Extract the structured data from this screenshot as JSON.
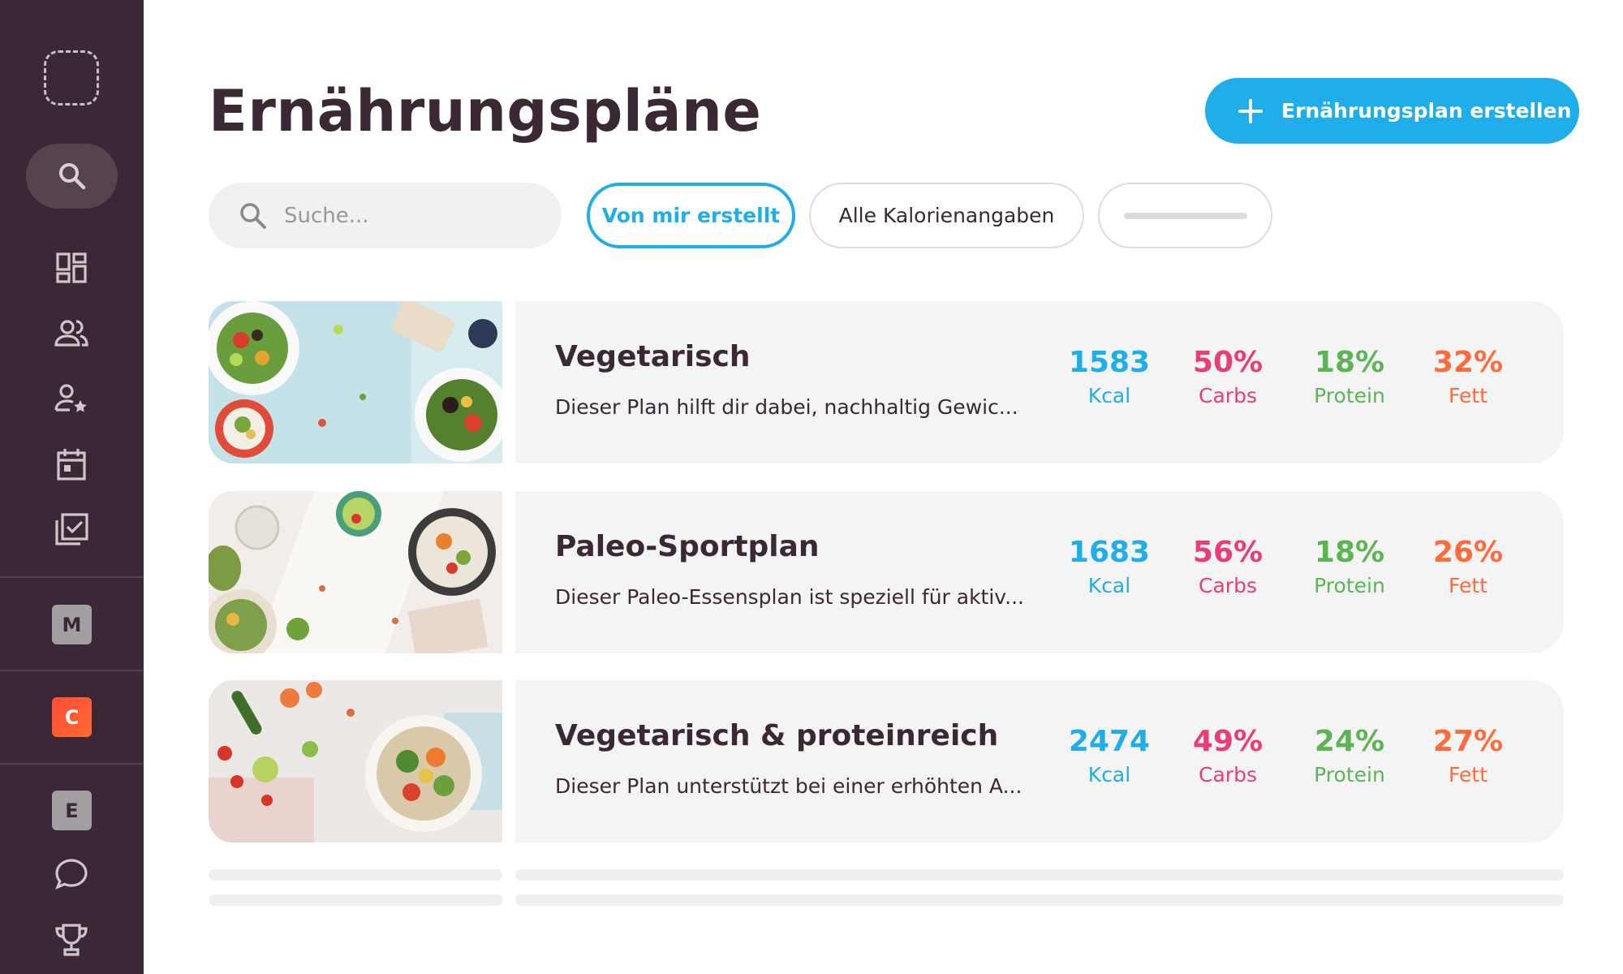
{
  "sidebar": {
    "letters": [
      "M",
      "C",
      "E"
    ],
    "icons": [
      "logo-placeholder-icon",
      "search-icon",
      "dashboard-icon",
      "users-icon",
      "user-star-icon",
      "calendar-icon",
      "checklist-icon",
      "chat-icon",
      "trophy-icon"
    ]
  },
  "header": {
    "title": "Ernährungspläne",
    "create_label": "Ernährungsplan erstellen"
  },
  "filters": {
    "search_placeholder": "Suche...",
    "chip_active": "Von mir erstellt",
    "chip_calories": "Alle Kalorienangaben"
  },
  "plans": [
    {
      "title": "Vegetarisch",
      "description": "Dieser Plan hilft dir dabei, nachhaltig Gewic...",
      "kcal": "1583",
      "kcal_label": "Kcal",
      "carbs": "50%",
      "carbs_label": "Carbs",
      "protein": "18%",
      "protein_label": "Protein",
      "fett": "32%",
      "fett_label": "Fett"
    },
    {
      "title": "Paleo-Sportplan",
      "description": "Dieser Paleo-Essensplan ist speziell für aktiv...",
      "kcal": "1683",
      "kcal_label": "Kcal",
      "carbs": "56%",
      "carbs_label": "Carbs",
      "protein": "18%",
      "protein_label": "Protein",
      "fett": "26%",
      "fett_label": "Fett"
    },
    {
      "title": "Vegetarisch & proteinreich",
      "description": "Dieser Plan unterstützt bei einer erhöhten A...",
      "kcal": "2474",
      "kcal_label": "Kcal",
      "carbs": "49%",
      "carbs_label": "Carbs",
      "protein": "24%",
      "protein_label": "Protein",
      "fett": "27%",
      "fett_label": "Fett"
    }
  ],
  "colors": {
    "sidebar_bg": "#3a2836",
    "accent_blue": "#20aeea",
    "carbs_pink": "#e83d78",
    "protein_green": "#5cb554",
    "fett_orange": "#ff6b3a"
  }
}
